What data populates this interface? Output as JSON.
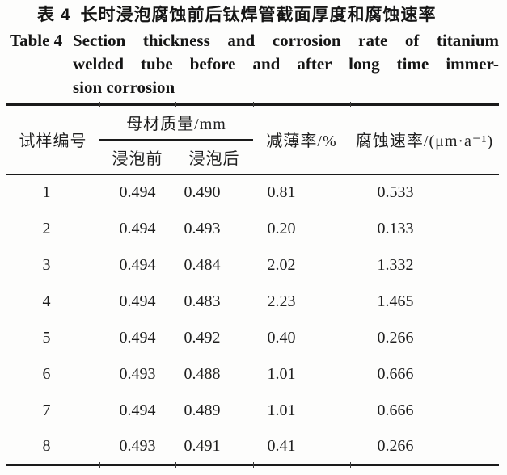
{
  "title": {
    "zh_label": "表 4",
    "zh_text": "长时浸泡腐蚀前后钛焊管截面厚度和腐蚀速率",
    "en_label": "Table 4",
    "en_lines": [
      "Section thickness and corrosion rate of titanium",
      "welded tube before and after long time immer-",
      "sion corrosion"
    ]
  },
  "table": {
    "headers": {
      "sample": "试样编号",
      "base_material_group": "母材质量/mm",
      "before": "浸泡前",
      "after": "浸泡后",
      "thinning": "减薄率/%",
      "corrosion_rate": "腐蚀速率/(μm·a⁻¹)"
    },
    "rows": [
      {
        "sample": "1",
        "before": "0.494",
        "after": "0.490",
        "thinning": "0.81",
        "rate": "0.533"
      },
      {
        "sample": "2",
        "before": "0.494",
        "after": "0.493",
        "thinning": "0.20",
        "rate": "0.133"
      },
      {
        "sample": "3",
        "before": "0.494",
        "after": "0.484",
        "thinning": "2.02",
        "rate": "1.332"
      },
      {
        "sample": "4",
        "before": "0.494",
        "after": "0.483",
        "thinning": "2.23",
        "rate": "1.465"
      },
      {
        "sample": "5",
        "before": "0.494",
        "after": "0.492",
        "thinning": "0.40",
        "rate": "0.266"
      },
      {
        "sample": "6",
        "before": "0.493",
        "after": "0.488",
        "thinning": "1.01",
        "rate": "0.666"
      },
      {
        "sample": "7",
        "before": "0.494",
        "after": "0.489",
        "thinning": "1.01",
        "rate": "0.666"
      },
      {
        "sample": "8",
        "before": "0.493",
        "after": "0.491",
        "thinning": "0.41",
        "rate": "0.266"
      }
    ]
  }
}
